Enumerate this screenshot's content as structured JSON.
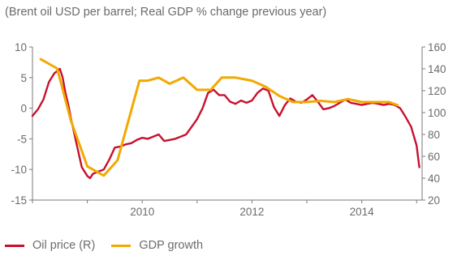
{
  "chart_data": {
    "type": "line",
    "subtitle": "(Brent oil USD per barrel; Real GDP % change previous year)",
    "x_ticks": [
      "2010",
      "2012",
      "2014"
    ],
    "y_left": {
      "ticks": [
        "10",
        "5",
        "0",
        "-5",
        "-10",
        "-15"
      ],
      "range": [
        -15,
        10
      ]
    },
    "y_right": {
      "ticks": [
        "160",
        "140",
        "120",
        "100",
        "80",
        "60",
        "40",
        "20"
      ],
      "range": [
        20,
        160
      ]
    },
    "series": [
      {
        "name": "Oil price (R)",
        "axis": "right",
        "color": "#c8102e",
        "x": [
          2008.0,
          2008.1,
          2008.2,
          2008.3,
          2008.4,
          2008.5,
          2008.55,
          2008.6,
          2008.65,
          2008.7,
          2008.8,
          2008.9,
          2009.0,
          2009.05,
          2009.1,
          2009.2,
          2009.3,
          2009.4,
          2009.5,
          2009.6,
          2009.7,
          2009.8,
          2009.9,
          2010.0,
          2010.1,
          2010.2,
          2010.3,
          2010.4,
          2010.5,
          2010.6,
          2010.7,
          2010.8,
          2010.9,
          2011.0,
          2011.1,
          2011.2,
          2011.3,
          2011.4,
          2011.5,
          2011.6,
          2011.7,
          2011.8,
          2011.9,
          2012.0,
          2012.1,
          2012.2,
          2012.3,
          2012.4,
          2012.5,
          2012.6,
          2012.7,
          2012.8,
          2012.9,
          2013.0,
          2013.1,
          2013.2,
          2013.3,
          2013.4,
          2013.5,
          2013.6,
          2013.7,
          2013.8,
          2013.9,
          2014.0,
          2014.1,
          2014.2,
          2014.3,
          2014.4,
          2014.5,
          2014.6,
          2014.7,
          2014.8,
          2014.9,
          2015.0,
          2015.05
        ],
        "y": [
          97,
          103,
          112,
          128,
          136,
          140,
          132,
          118,
          108,
          95,
          72,
          50,
          42,
          40,
          44,
          46,
          48,
          57,
          68,
          69,
          71,
          72,
          75,
          77,
          76,
          78,
          80,
          74,
          75,
          76,
          78,
          80,
          87,
          94,
          104,
          118,
          121,
          116,
          116,
          110,
          108,
          111,
          109,
          111,
          118,
          122,
          120,
          105,
          97,
          107,
          113,
          110,
          109,
          112,
          116,
          110,
          103,
          104,
          106,
          109,
          112,
          109,
          108,
          107,
          108,
          109,
          108,
          107,
          108,
          107,
          104,
          96,
          87,
          70,
          50
        ]
      },
      {
        "name": "GDP growth",
        "axis": "left",
        "color": "#f2a900",
        "x": [
          2008.15,
          2008.45,
          2008.7,
          2009.0,
          2009.3,
          2009.55,
          2009.75,
          2009.95,
          2010.1,
          2010.3,
          2010.5,
          2010.75,
          2011.0,
          2011.25,
          2011.45,
          2011.7,
          2012.0,
          2012.25,
          2012.5,
          2012.75,
          2013.0,
          2013.25,
          2013.5,
          2013.75,
          2014.0,
          2014.25,
          2014.5,
          2014.65
        ],
        "y": [
          8.0,
          6.5,
          -2.0,
          -9.5,
          -11.0,
          -8.5,
          -2.0,
          4.5,
          4.5,
          5.0,
          4.0,
          5.0,
          3.0,
          3.0,
          5.0,
          5.0,
          4.5,
          3.5,
          2.0,
          1.0,
          1.0,
          1.2,
          1.0,
          1.5,
          1.0,
          1.0,
          1.0,
          0.5
        ]
      }
    ],
    "legend": {
      "position": "bottom-left"
    }
  }
}
